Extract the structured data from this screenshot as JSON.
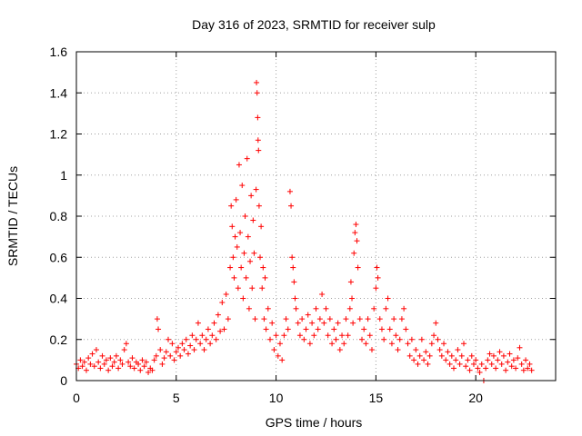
{
  "chart_data": {
    "type": "scatter",
    "title": "Day 316 of 2023, SRMTID for receiver sulp",
    "xlabel": "GPS time / hours",
    "ylabel": "SRMTID / TECUs",
    "xlim": [
      0,
      24
    ],
    "ylim": [
      0,
      1.6
    ],
    "xticks": [
      0,
      5,
      10,
      15,
      20
    ],
    "yticks": [
      0,
      0.2,
      0.4,
      0.6,
      0.8,
      1,
      1.2,
      1.4,
      1.6
    ],
    "xtick_labels": [
      "0",
      "5",
      "10",
      "15",
      "20"
    ],
    "ytick_labels": [
      "0",
      "0.2",
      "0.4",
      "0.6",
      "0.8",
      "1",
      "1.2",
      "1.4",
      "1.6"
    ],
    "grid": true,
    "marker": "+",
    "color": "#ff0000",
    "series": [
      {
        "name": "SRMTID",
        "points": [
          [
            0.0,
            0.08
          ],
          [
            0.1,
            0.06
          ],
          [
            0.2,
            0.1
          ],
          [
            0.3,
            0.07
          ],
          [
            0.4,
            0.09
          ],
          [
            0.5,
            0.05
          ],
          [
            0.6,
            0.11
          ],
          [
            0.7,
            0.08
          ],
          [
            0.8,
            0.13
          ],
          [
            0.9,
            0.07
          ],
          [
            1.0,
            0.15
          ],
          [
            1.1,
            0.09
          ],
          [
            1.2,
            0.06
          ],
          [
            1.3,
            0.12
          ],
          [
            1.4,
            0.08
          ],
          [
            1.5,
            0.1
          ],
          [
            1.6,
            0.05
          ],
          [
            1.7,
            0.11
          ],
          [
            1.8,
            0.07
          ],
          [
            1.9,
            0.09
          ],
          [
            2.0,
            0.12
          ],
          [
            2.1,
            0.06
          ],
          [
            2.2,
            0.1
          ],
          [
            2.3,
            0.08
          ],
          [
            2.4,
            0.15
          ],
          [
            2.5,
            0.18
          ],
          [
            2.6,
            0.09
          ],
          [
            2.7,
            0.07
          ],
          [
            2.8,
            0.11
          ],
          [
            2.9,
            0.06
          ],
          [
            3.0,
            0.09
          ],
          [
            3.1,
            0.08
          ],
          [
            3.2,
            0.05
          ],
          [
            3.3,
            0.1
          ],
          [
            3.4,
            0.07
          ],
          [
            3.5,
            0.09
          ],
          [
            3.6,
            0.04
          ],
          [
            3.7,
            0.06
          ],
          [
            3.8,
            0.05
          ],
          [
            3.9,
            0.1
          ],
          [
            4.0,
            0.12
          ],
          [
            4.05,
            0.3
          ],
          [
            4.1,
            0.25
          ],
          [
            4.2,
            0.15
          ],
          [
            4.3,
            0.08
          ],
          [
            4.4,
            0.11
          ],
          [
            4.5,
            0.14
          ],
          [
            4.6,
            0.2
          ],
          [
            4.7,
            0.12
          ],
          [
            4.8,
            0.18
          ],
          [
            4.9,
            0.1
          ],
          [
            5.0,
            0.14
          ],
          [
            5.1,
            0.16
          ],
          [
            5.2,
            0.12
          ],
          [
            5.3,
            0.18
          ],
          [
            5.4,
            0.15
          ],
          [
            5.5,
            0.2
          ],
          [
            5.6,
            0.13
          ],
          [
            5.7,
            0.17
          ],
          [
            5.8,
            0.22
          ],
          [
            5.9,
            0.15
          ],
          [
            6.0,
            0.2
          ],
          [
            6.1,
            0.28
          ],
          [
            6.2,
            0.18
          ],
          [
            6.3,
            0.22
          ],
          [
            6.4,
            0.15
          ],
          [
            6.5,
            0.2
          ],
          [
            6.6,
            0.25
          ],
          [
            6.7,
            0.18
          ],
          [
            6.8,
            0.22
          ],
          [
            6.9,
            0.28
          ],
          [
            7.0,
            0.2
          ],
          [
            7.1,
            0.32
          ],
          [
            7.2,
            0.24
          ],
          [
            7.3,
            0.38
          ],
          [
            7.4,
            0.25
          ],
          [
            7.5,
            0.42
          ],
          [
            7.6,
            0.3
          ],
          [
            7.7,
            0.55
          ],
          [
            7.75,
            0.85
          ],
          [
            7.8,
            0.75
          ],
          [
            7.85,
            0.6
          ],
          [
            7.9,
            0.5
          ],
          [
            7.95,
            0.7
          ],
          [
            8.0,
            0.88
          ],
          [
            8.05,
            0.65
          ],
          [
            8.1,
            0.45
          ],
          [
            8.15,
            1.05
          ],
          [
            8.2,
            0.72
          ],
          [
            8.25,
            0.55
          ],
          [
            8.3,
            0.95
          ],
          [
            8.35,
            0.4
          ],
          [
            8.4,
            0.62
          ],
          [
            8.45,
            0.8
          ],
          [
            8.5,
            0.5
          ],
          [
            8.55,
            1.08
          ],
          [
            8.6,
            0.7
          ],
          [
            8.65,
            0.35
          ],
          [
            8.7,
            0.58
          ],
          [
            8.75,
            0.9
          ],
          [
            8.8,
            0.45
          ],
          [
            8.85,
            0.78
          ],
          [
            8.9,
            0.62
          ],
          [
            8.95,
            0.3
          ],
          [
            9.0,
            0.93
          ],
          [
            9.02,
            1.45
          ],
          [
            9.05,
            1.4
          ],
          [
            9.08,
            1.28
          ],
          [
            9.1,
            1.17
          ],
          [
            9.12,
            1.12
          ],
          [
            9.15,
            0.85
          ],
          [
            9.2,
            0.6
          ],
          [
            9.25,
            0.75
          ],
          [
            9.3,
            0.45
          ],
          [
            9.35,
            0.55
          ],
          [
            9.4,
            0.3
          ],
          [
            9.45,
            0.5
          ],
          [
            9.5,
            0.25
          ],
          [
            9.6,
            0.35
          ],
          [
            9.7,
            0.2
          ],
          [
            9.8,
            0.28
          ],
          [
            9.9,
            0.15
          ],
          [
            10.0,
            0.22
          ],
          [
            10.1,
            0.12
          ],
          [
            10.2,
            0.18
          ],
          [
            10.3,
            0.1
          ],
          [
            10.4,
            0.22
          ],
          [
            10.5,
            0.3
          ],
          [
            10.6,
            0.25
          ],
          [
            10.7,
            0.92
          ],
          [
            10.75,
            0.85
          ],
          [
            10.8,
            0.6
          ],
          [
            10.85,
            0.55
          ],
          [
            10.9,
            0.48
          ],
          [
            10.95,
            0.4
          ],
          [
            11.0,
            0.35
          ],
          [
            11.1,
            0.28
          ],
          [
            11.2,
            0.22
          ],
          [
            11.3,
            0.3
          ],
          [
            11.4,
            0.2
          ],
          [
            11.5,
            0.25
          ],
          [
            11.6,
            0.32
          ],
          [
            11.7,
            0.18
          ],
          [
            11.8,
            0.28
          ],
          [
            11.9,
            0.22
          ],
          [
            12.0,
            0.35
          ],
          [
            12.1,
            0.25
          ],
          [
            12.2,
            0.3
          ],
          [
            12.3,
            0.42
          ],
          [
            12.4,
            0.28
          ],
          [
            12.5,
            0.35
          ],
          [
            12.6,
            0.22
          ],
          [
            12.7,
            0.3
          ],
          [
            12.8,
            0.18
          ],
          [
            12.9,
            0.25
          ],
          [
            13.0,
            0.2
          ],
          [
            13.1,
            0.28
          ],
          [
            13.2,
            0.15
          ],
          [
            13.3,
            0.22
          ],
          [
            13.4,
            0.18
          ],
          [
            13.5,
            0.3
          ],
          [
            13.6,
            0.22
          ],
          [
            13.7,
            0.35
          ],
          [
            13.75,
            0.48
          ],
          [
            13.8,
            0.4
          ],
          [
            13.85,
            0.28
          ],
          [
            13.9,
            0.62
          ],
          [
            13.95,
            0.72
          ],
          [
            14.0,
            0.76
          ],
          [
            14.05,
            0.68
          ],
          [
            14.1,
            0.55
          ],
          [
            14.2,
            0.3
          ],
          [
            14.3,
            0.2
          ],
          [
            14.4,
            0.25
          ],
          [
            14.5,
            0.18
          ],
          [
            14.6,
            0.3
          ],
          [
            14.7,
            0.22
          ],
          [
            14.8,
            0.15
          ],
          [
            14.9,
            0.35
          ],
          [
            15.0,
            0.45
          ],
          [
            15.05,
            0.55
          ],
          [
            15.1,
            0.5
          ],
          [
            15.2,
            0.3
          ],
          [
            15.3,
            0.25
          ],
          [
            15.4,
            0.2
          ],
          [
            15.5,
            0.35
          ],
          [
            15.6,
            0.4
          ],
          [
            15.7,
            0.25
          ],
          [
            15.8,
            0.18
          ],
          [
            15.9,
            0.3
          ],
          [
            16.0,
            0.22
          ],
          [
            16.1,
            0.15
          ],
          [
            16.2,
            0.2
          ],
          [
            16.3,
            0.3
          ],
          [
            16.4,
            0.35
          ],
          [
            16.5,
            0.25
          ],
          [
            16.6,
            0.18
          ],
          [
            16.7,
            0.12
          ],
          [
            16.8,
            0.2
          ],
          [
            16.9,
            0.1
          ],
          [
            17.0,
            0.15
          ],
          [
            17.1,
            0.08
          ],
          [
            17.2,
            0.12
          ],
          [
            17.3,
            0.2
          ],
          [
            17.4,
            0.1
          ],
          [
            17.5,
            0.14
          ],
          [
            17.6,
            0.08
          ],
          [
            17.7,
            0.12
          ],
          [
            17.8,
            0.18
          ],
          [
            17.9,
            0.22
          ],
          [
            18.0,
            0.28
          ],
          [
            18.1,
            0.2
          ],
          [
            18.2,
            0.15
          ],
          [
            18.3,
            0.12
          ],
          [
            18.4,
            0.18
          ],
          [
            18.5,
            0.1
          ],
          [
            18.6,
            0.14
          ],
          [
            18.7,
            0.08
          ],
          [
            18.8,
            0.12
          ],
          [
            18.9,
            0.06
          ],
          [
            19.0,
            0.1
          ],
          [
            19.1,
            0.15
          ],
          [
            19.2,
            0.08
          ],
          [
            19.3,
            0.12
          ],
          [
            19.4,
            0.18
          ],
          [
            19.5,
            0.07
          ],
          [
            19.6,
            0.1
          ],
          [
            19.7,
            0.05
          ],
          [
            19.8,
            0.12
          ],
          [
            19.9,
            0.08
          ],
          [
            20.0,
            0.1
          ],
          [
            20.1,
            0.06
          ],
          [
            20.2,
            0.04
          ],
          [
            20.3,
            0.08
          ],
          [
            20.4,
            0.0
          ],
          [
            20.5,
            0.06
          ],
          [
            20.6,
            0.1
          ],
          [
            20.7,
            0.13
          ],
          [
            20.8,
            0.08
          ],
          [
            20.9,
            0.12
          ],
          [
            21.0,
            0.06
          ],
          [
            21.1,
            0.1
          ],
          [
            21.2,
            0.14
          ],
          [
            21.3,
            0.08
          ],
          [
            21.4,
            0.12
          ],
          [
            21.5,
            0.05
          ],
          [
            21.6,
            0.09
          ],
          [
            21.7,
            0.13
          ],
          [
            21.8,
            0.07
          ],
          [
            21.9,
            0.1
          ],
          [
            22.0,
            0.06
          ],
          [
            22.1,
            0.11
          ],
          [
            22.2,
            0.16
          ],
          [
            22.3,
            0.08
          ],
          [
            22.4,
            0.05
          ],
          [
            22.5,
            0.1
          ],
          [
            22.6,
            0.06
          ],
          [
            22.7,
            0.08
          ],
          [
            22.8,
            0.05
          ]
        ]
      }
    ]
  }
}
